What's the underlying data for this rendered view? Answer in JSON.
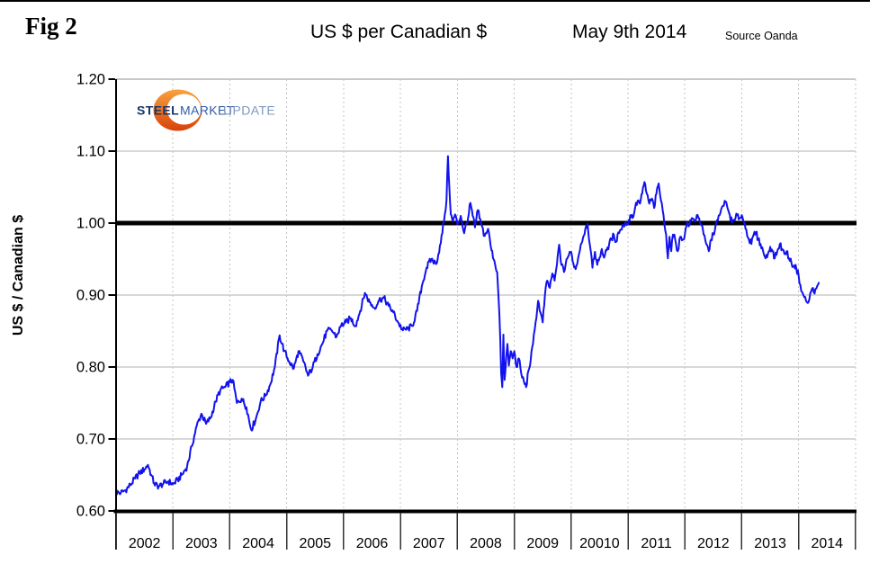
{
  "header": {
    "fig_label": "Fig 2",
    "title": "US $ per Canadian $",
    "date": "May 9th 2014",
    "source": "Source Oanda"
  },
  "logo": {
    "steel": "STEEL",
    "market": "MARKET",
    "update": "UPDATE"
  },
  "chart_data": {
    "type": "line",
    "title": "US $ per Canadian $",
    "subtitle": "May 9th 2014",
    "source": "Source Oanda",
    "ylabel": "US $ / Canadian $",
    "xlabel": "",
    "legend": "none",
    "grid": "horizontal solid gray at 0.10 steps, vertical dashed gray at year starts",
    "xlim": [
      2002,
      2015
    ],
    "ylim": [
      0.6,
      1.2
    ],
    "reference_line": 1.0,
    "x_tick_labels": [
      "2002",
      "2003",
      "2004",
      "2005",
      "2006",
      "2007",
      "2008",
      "2009",
      "20010",
      "2011",
      "2012",
      "2013",
      "2014"
    ],
    "y_ticks": [
      {
        "label": "1.20",
        "value": 1.2
      },
      {
        "label": "1.10",
        "value": 1.1
      },
      {
        "label": "1.00",
        "value": 1.0
      },
      {
        "label": "0.90",
        "value": 0.9
      },
      {
        "label": "0.80",
        "value": 0.8
      },
      {
        "label": "0.70",
        "value": 0.7
      },
      {
        "label": "0.60",
        "value": 0.6
      }
    ],
    "daily_noise": 0.0045,
    "colors": {
      "line": "#1212ee",
      "reference_line": "#000000",
      "axis": "#000000",
      "grid_horizontal": "#b0b0b0",
      "grid_vertical": "#c4c4c4",
      "logo_orange_top": "#F9A13C",
      "logo_orange_bottom": "#D8420A"
    },
    "series": [
      {
        "name": "US $ per Canadian $ (daily)",
        "points": [
          [
            2002.0,
            0.626
          ],
          [
            2002.083,
            0.625
          ],
          [
            2002.167,
            0.629
          ],
          [
            2002.25,
            0.636
          ],
          [
            2002.333,
            0.645
          ],
          [
            2002.417,
            0.653
          ],
          [
            2002.5,
            0.658
          ],
          [
            2002.56,
            0.664
          ],
          [
            2002.62,
            0.65
          ],
          [
            2002.67,
            0.638
          ],
          [
            2002.75,
            0.634
          ],
          [
            2002.833,
            0.638
          ],
          [
            2002.917,
            0.641
          ],
          [
            2003.0,
            0.637
          ],
          [
            2003.083,
            0.643
          ],
          [
            2003.167,
            0.651
          ],
          [
            2003.25,
            0.662
          ],
          [
            2003.333,
            0.69
          ],
          [
            2003.417,
            0.718
          ],
          [
            2003.5,
            0.735
          ],
          [
            2003.583,
            0.721
          ],
          [
            2003.667,
            0.73
          ],
          [
            2003.75,
            0.752
          ],
          [
            2003.833,
            0.768
          ],
          [
            2003.917,
            0.772
          ],
          [
            2004.0,
            0.779
          ],
          [
            2004.05,
            0.782
          ],
          [
            2004.125,
            0.75
          ],
          [
            2004.208,
            0.756
          ],
          [
            2004.292,
            0.744
          ],
          [
            2004.375,
            0.713
          ],
          [
            2004.458,
            0.728
          ],
          [
            2004.542,
            0.752
          ],
          [
            2004.625,
            0.76
          ],
          [
            2004.708,
            0.775
          ],
          [
            2004.792,
            0.8
          ],
          [
            2004.875,
            0.844
          ],
          [
            2004.958,
            0.822
          ],
          [
            2005.042,
            0.808
          ],
          [
            2005.125,
            0.798
          ],
          [
            2005.208,
            0.822
          ],
          [
            2005.292,
            0.808
          ],
          [
            2005.375,
            0.788
          ],
          [
            2005.458,
            0.8
          ],
          [
            2005.542,
            0.818
          ],
          [
            2005.625,
            0.832
          ],
          [
            2005.708,
            0.85
          ],
          [
            2005.792,
            0.851
          ],
          [
            2005.875,
            0.842
          ],
          [
            2005.958,
            0.858
          ],
          [
            2006.042,
            0.862
          ],
          [
            2006.125,
            0.868
          ],
          [
            2006.208,
            0.857
          ],
          [
            2006.292,
            0.878
          ],
          [
            2006.375,
            0.903
          ],
          [
            2006.458,
            0.89
          ],
          [
            2006.542,
            0.882
          ],
          [
            2006.625,
            0.893
          ],
          [
            2006.708,
            0.896
          ],
          [
            2006.792,
            0.885
          ],
          [
            2006.875,
            0.876
          ],
          [
            2006.958,
            0.862
          ],
          [
            2007.042,
            0.851
          ],
          [
            2007.125,
            0.853
          ],
          [
            2007.208,
            0.857
          ],
          [
            2007.292,
            0.878
          ],
          [
            2007.375,
            0.912
          ],
          [
            2007.458,
            0.938
          ],
          [
            2007.542,
            0.95
          ],
          [
            2007.625,
            0.943
          ],
          [
            2007.708,
            0.972
          ],
          [
            2007.78,
            1.012
          ],
          [
            2007.81,
            1.032
          ],
          [
            2007.835,
            1.093
          ],
          [
            2007.86,
            1.048
          ],
          [
            2007.885,
            1.012
          ],
          [
            2007.92,
            1.002
          ],
          [
            2007.96,
            1.012
          ],
          [
            2008.0,
            0.998
          ],
          [
            2008.06,
            1.01
          ],
          [
            2008.12,
            0.986
          ],
          [
            2008.19,
            1.008
          ],
          [
            2008.23,
            1.028
          ],
          [
            2008.27,
            1.01
          ],
          [
            2008.31,
            0.994
          ],
          [
            2008.36,
            1.018
          ],
          [
            2008.42,
            0.998
          ],
          [
            2008.48,
            0.982
          ],
          [
            2008.54,
            0.992
          ],
          [
            2008.6,
            0.962
          ],
          [
            2008.65,
            0.948
          ],
          [
            2008.7,
            0.932
          ],
          [
            2008.74,
            0.872
          ],
          [
            2008.77,
            0.792
          ],
          [
            2008.79,
            0.772
          ],
          [
            2008.81,
            0.845
          ],
          [
            2008.83,
            0.782
          ],
          [
            2008.855,
            0.808
          ],
          [
            2008.88,
            0.832
          ],
          [
            2008.905,
            0.802
          ],
          [
            2008.94,
            0.822
          ],
          [
            2008.97,
            0.812
          ],
          [
            2009.0,
            0.822
          ],
          [
            2009.04,
            0.8
          ],
          [
            2009.08,
            0.812
          ],
          [
            2009.125,
            0.79
          ],
          [
            2009.17,
            0.78
          ],
          [
            2009.21,
            0.772
          ],
          [
            2009.25,
            0.795
          ],
          [
            2009.29,
            0.81
          ],
          [
            2009.33,
            0.832
          ],
          [
            2009.375,
            0.862
          ],
          [
            2009.42,
            0.892
          ],
          [
            2009.46,
            0.876
          ],
          [
            2009.5,
            0.862
          ],
          [
            2009.54,
            0.9
          ],
          [
            2009.58,
            0.92
          ],
          [
            2009.625,
            0.91
          ],
          [
            2009.67,
            0.93
          ],
          [
            2009.71,
            0.92
          ],
          [
            2009.75,
            0.942
          ],
          [
            2009.79,
            0.97
          ],
          [
            2009.83,
            0.942
          ],
          [
            2009.875,
            0.932
          ],
          [
            2009.92,
            0.95
          ],
          [
            2009.96,
            0.955
          ],
          [
            2010.0,
            0.96
          ],
          [
            2010.04,
            0.944
          ],
          [
            2010.08,
            0.936
          ],
          [
            2010.125,
            0.952
          ],
          [
            2010.17,
            0.97
          ],
          [
            2010.21,
            0.98
          ],
          [
            2010.25,
            0.992
          ],
          [
            2010.29,
            0.999
          ],
          [
            2010.33,
            0.97
          ],
          [
            2010.375,
            0.938
          ],
          [
            2010.42,
            0.96
          ],
          [
            2010.46,
            0.942
          ],
          [
            2010.5,
            0.952
          ],
          [
            2010.54,
            0.964
          ],
          [
            2010.58,
            0.952
          ],
          [
            2010.625,
            0.962
          ],
          [
            2010.67,
            0.971
          ],
          [
            2010.71,
            0.977
          ],
          [
            2010.75,
            0.984
          ],
          [
            2010.79,
            0.974
          ],
          [
            2010.83,
            0.987
          ],
          [
            2010.875,
            0.991
          ],
          [
            2010.92,
            0.997
          ],
          [
            2010.96,
            1.001
          ],
          [
            2011.0,
            0.998
          ],
          [
            2011.04,
            1.011
          ],
          [
            2011.08,
            1.007
          ],
          [
            2011.125,
            1.021
          ],
          [
            2011.17,
            1.031
          ],
          [
            2011.21,
            1.027
          ],
          [
            2011.25,
            1.041
          ],
          [
            2011.29,
            1.057
          ],
          [
            2011.33,
            1.041
          ],
          [
            2011.375,
            1.027
          ],
          [
            2011.42,
            1.034
          ],
          [
            2011.46,
            1.021
          ],
          [
            2011.5,
            1.041
          ],
          [
            2011.54,
            1.055
          ],
          [
            2011.58,
            1.031
          ],
          [
            2011.625,
            1.011
          ],
          [
            2011.67,
            0.984
          ],
          [
            2011.7,
            0.951
          ],
          [
            2011.73,
            0.981
          ],
          [
            2011.76,
            0.961
          ],
          [
            2011.79,
            0.984
          ],
          [
            2011.83,
            0.977
          ],
          [
            2011.875,
            0.961
          ],
          [
            2011.92,
            0.981
          ],
          [
            2011.96,
            0.977
          ],
          [
            2012.0,
            0.984
          ],
          [
            2012.04,
            1.001
          ],
          [
            2012.08,
            0.997
          ],
          [
            2012.125,
            1.007
          ],
          [
            2012.17,
            1.002
          ],
          [
            2012.21,
            1.011
          ],
          [
            2012.25,
            1.007
          ],
          [
            2012.29,
            0.997
          ],
          [
            2012.33,
            0.984
          ],
          [
            2012.375,
            0.971
          ],
          [
            2012.42,
            0.961
          ],
          [
            2012.46,
            0.977
          ],
          [
            2012.5,
            0.984
          ],
          [
            2012.54,
            0.997
          ],
          [
            2012.58,
            1.004
          ],
          [
            2012.625,
            1.014
          ],
          [
            2012.67,
            1.024
          ],
          [
            2012.7,
            1.031
          ],
          [
            2012.75,
            1.021
          ],
          [
            2012.79,
            1.011
          ],
          [
            2012.83,
            1.001
          ],
          [
            2012.875,
            1.004
          ],
          [
            2012.92,
            1.011
          ],
          [
            2012.96,
            1.007
          ],
          [
            2013.0,
            1.011
          ],
          [
            2013.04,
            1.001
          ],
          [
            2013.08,
            0.991
          ],
          [
            2013.125,
            0.977
          ],
          [
            2013.17,
            0.971
          ],
          [
            2013.21,
            0.984
          ],
          [
            2013.25,
            0.987
          ],
          [
            2013.29,
            0.977
          ],
          [
            2013.33,
            0.971
          ],
          [
            2013.375,
            0.961
          ],
          [
            2013.42,
            0.951
          ],
          [
            2013.46,
            0.957
          ],
          [
            2013.5,
            0.967
          ],
          [
            2013.54,
            0.961
          ],
          [
            2013.58,
            0.951
          ],
          [
            2013.625,
            0.961
          ],
          [
            2013.67,
            0.971
          ],
          [
            2013.71,
            0.964
          ],
          [
            2013.75,
            0.957
          ],
          [
            2013.79,
            0.961
          ],
          [
            2013.83,
            0.951
          ],
          [
            2013.875,
            0.944
          ],
          [
            2013.92,
            0.941
          ],
          [
            2013.96,
            0.937
          ],
          [
            2014.0,
            0.927
          ],
          [
            2014.03,
            0.914
          ],
          [
            2014.06,
            0.904
          ],
          [
            2014.1,
            0.897
          ],
          [
            2014.13,
            0.892
          ],
          [
            2014.16,
            0.889
          ],
          [
            2014.19,
            0.895
          ],
          [
            2014.22,
            0.905
          ],
          [
            2014.25,
            0.91
          ],
          [
            2014.28,
            0.902
          ],
          [
            2014.31,
            0.909
          ],
          [
            2014.33,
            0.913
          ],
          [
            2014.355,
            0.917
          ]
        ]
      }
    ]
  }
}
